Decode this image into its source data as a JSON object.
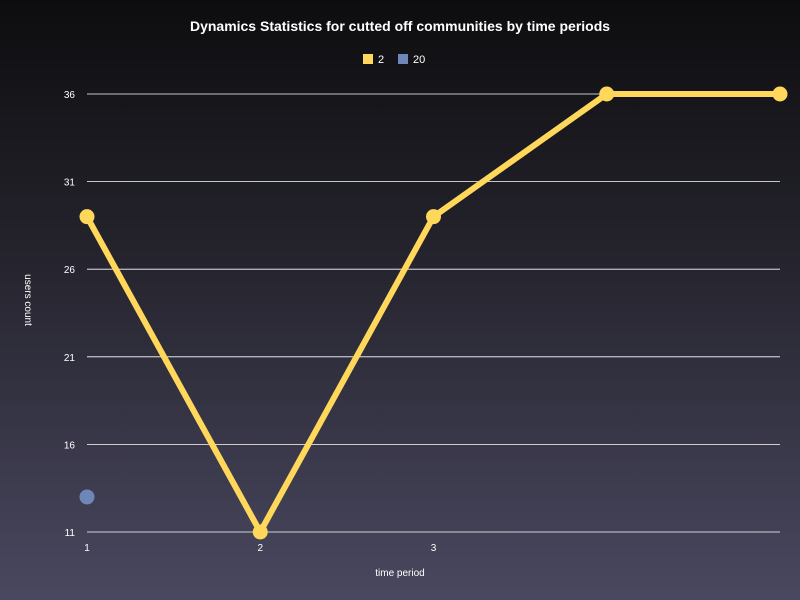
{
  "chart_data": {
    "type": "line",
    "title": "Dynamics Statistics for cutted off communities by time periods",
    "xlabel": "time period",
    "ylabel": "users count",
    "x": [
      1,
      2,
      3,
      4,
      5
    ],
    "x_tick_labels": [
      "1",
      "2",
      "3"
    ],
    "y_ticks": [
      11,
      16,
      21,
      26,
      31,
      36
    ],
    "ylim": [
      11,
      36
    ],
    "grid": true,
    "legend_position": "top-center",
    "series": [
      {
        "name": "2",
        "color": "#ffd75a",
        "values": [
          29,
          11,
          29,
          36,
          36
        ]
      },
      {
        "name": "20",
        "color": "#6f86b8",
        "values": [
          13,
          null,
          null,
          null,
          null
        ]
      }
    ]
  }
}
